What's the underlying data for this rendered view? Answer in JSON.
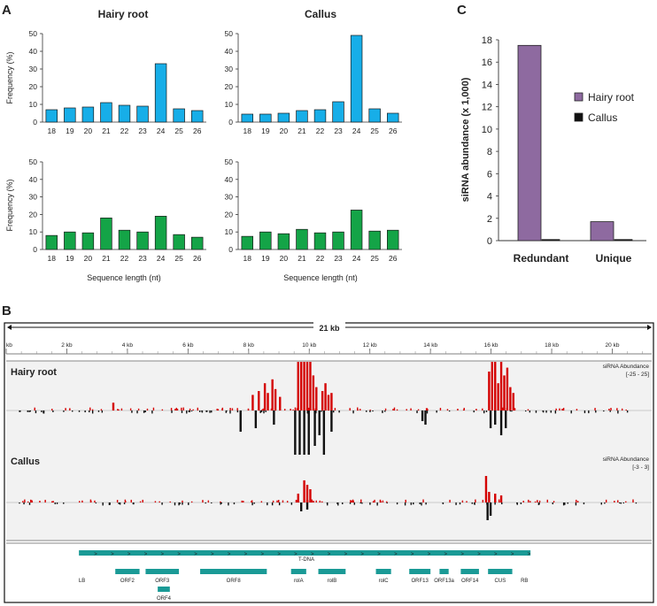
{
  "panel_labels": {
    "a": "A",
    "b": "B",
    "c": "C"
  },
  "panel_a": {
    "ylabel": "Frequency (%)",
    "xlabel": "Sequence length (nt)",
    "colors": {
      "top": "#17aee8",
      "bottom": "#14a447",
      "stroke": "#1a1a1a"
    }
  },
  "chart_data": [
    {
      "type": "bar",
      "title": "Hairy root",
      "categories": [
        "18",
        "19",
        "20",
        "21",
        "22",
        "23",
        "24",
        "25",
        "26"
      ],
      "values": [
        7,
        8,
        8.5,
        11,
        9.5,
        9,
        33,
        7.5,
        6.5
      ],
      "ylim": [
        0,
        50
      ],
      "yticks": [
        "0",
        "10",
        "20",
        "30",
        "40",
        "50"
      ],
      "ylabel": "Frequency (%)"
    },
    {
      "type": "bar",
      "title": "Callus",
      "categories": [
        "18",
        "19",
        "20",
        "21",
        "22",
        "23",
        "24",
        "25",
        "26"
      ],
      "values": [
        4.5,
        4.5,
        5,
        6.5,
        7,
        11.5,
        49,
        7.5,
        5
      ],
      "ylim": [
        0,
        50
      ],
      "yticks": [
        "0",
        "10",
        "20",
        "30",
        "40",
        "50"
      ]
    },
    {
      "type": "bar",
      "title": "",
      "categories": [
        "18",
        "19",
        "20",
        "21",
        "22",
        "23",
        "24",
        "25",
        "26"
      ],
      "values": [
        8,
        10,
        9.5,
        18,
        11,
        10,
        19,
        8.5,
        7
      ],
      "ylim": [
        0,
        50
      ],
      "yticks": [
        "0",
        "10",
        "20",
        "30",
        "40",
        "50"
      ],
      "xlabel": "Sequence length (nt)",
      "ylabel": "Frequency (%)"
    },
    {
      "type": "bar",
      "title": "",
      "categories": [
        "18",
        "19",
        "20",
        "21",
        "22",
        "23",
        "24",
        "25",
        "26"
      ],
      "values": [
        7.5,
        10,
        9,
        11.5,
        9.5,
        10,
        22.5,
        10.5,
        11
      ],
      "ylim": [
        0,
        50
      ],
      "yticks": [
        "0",
        "10",
        "20",
        "30",
        "40",
        "50"
      ],
      "xlabel": "Sequence length (nt)"
    },
    {
      "type": "bar",
      "title": "",
      "categories": [
        "Redundant",
        "Unique"
      ],
      "series": [
        {
          "name": "Hairy root",
          "color": "#8e6aa0",
          "values": [
            17.5,
            1.7
          ]
        },
        {
          "name": "Callus",
          "color": "#111111",
          "values": [
            0.1,
            0.1
          ]
        }
      ],
      "ylim": [
        0,
        18
      ],
      "yticks": [
        "0",
        "2",
        "4",
        "6",
        "8",
        "10",
        "12",
        "14",
        "16",
        "18"
      ],
      "ylabel": "siRNA abundance (x 1,000)"
    }
  ],
  "panel_b": {
    "scale_title": "21 kb",
    "ruler_ticks": [
      "kb",
      "2 kb",
      "4 kb",
      "6 kb",
      "8 kb",
      "10 kb",
      "12 kb",
      "14 kb",
      "16 kb",
      "18 kb",
      "20 kb"
    ],
    "ruler_kb": [
      0,
      2,
      4,
      6,
      8,
      10,
      12,
      14,
      16,
      18,
      20
    ],
    "track1": {
      "label": "Hairy root",
      "scale_title": "siRNA Abundance",
      "scale_range": "[-25 - 25]"
    },
    "track2": {
      "label": "Callus",
      "scale_title": "siRNA Abundance",
      "scale_range": "[-3 - 3]"
    },
    "colors": {
      "sense": "#d40000",
      "antisense": "#111111",
      "feature": "#1a9a96"
    },
    "tdna_label": "T-DNA",
    "features": [
      {
        "name": "LB",
        "start": 2.5,
        "end": 2.5,
        "row": 1
      },
      {
        "name": "ORF2",
        "start": 3.6,
        "end": 4.4,
        "row": 1
      },
      {
        "name": "ORF3",
        "start": 4.6,
        "end": 5.7,
        "row": 1
      },
      {
        "name": "ORF4",
        "start": 5.0,
        "end": 5.4,
        "row": 2
      },
      {
        "name": "ORF8",
        "start": 6.4,
        "end": 8.6,
        "row": 1
      },
      {
        "name": "rolA",
        "start": 9.4,
        "end": 9.9,
        "row": 1
      },
      {
        "name": "rolB",
        "start": 10.3,
        "end": 11.2,
        "row": 1
      },
      {
        "name": "rolC",
        "start": 12.2,
        "end": 12.7,
        "row": 1
      },
      {
        "name": "ORF13",
        "start": 13.3,
        "end": 14.0,
        "row": 1
      },
      {
        "name": "ORF13a",
        "start": 14.3,
        "end": 14.6,
        "row": 1
      },
      {
        "name": "ORF14",
        "start": 15.0,
        "end": 15.6,
        "row": 1
      },
      {
        "name": "CUS",
        "start": 15.9,
        "end": 16.7,
        "row": 1
      },
      {
        "name": "RB",
        "start": 17.1,
        "end": 17.1,
        "row": 1
      }
    ],
    "tdna": {
      "start": 2.4,
      "end": 17.3
    },
    "peaks": {
      "track1_sense": [
        [
          8.1,
          8
        ],
        [
          8.3,
          10
        ],
        [
          8.5,
          14
        ],
        [
          8.6,
          9
        ],
        [
          8.75,
          16
        ],
        [
          8.85,
          11
        ],
        [
          9.0,
          7
        ],
        [
          9.6,
          25
        ],
        [
          9.7,
          25
        ],
        [
          9.8,
          25
        ],
        [
          9.9,
          25
        ],
        [
          10.0,
          25
        ],
        [
          10.1,
          18
        ],
        [
          10.2,
          12
        ],
        [
          10.4,
          10
        ],
        [
          10.5,
          14
        ],
        [
          10.6,
          8
        ],
        [
          10.7,
          9
        ],
        [
          3.5,
          4
        ],
        [
          15.9,
          20
        ],
        [
          16.0,
          25
        ],
        [
          16.1,
          25
        ],
        [
          16.2,
          14
        ],
        [
          16.3,
          25
        ],
        [
          16.4,
          18
        ],
        [
          16.5,
          22
        ],
        [
          16.6,
          12
        ],
        [
          16.7,
          9
        ]
      ],
      "track1_anti": [
        [
          7.7,
          12
        ],
        [
          8.2,
          10
        ],
        [
          8.8,
          8
        ],
        [
          9.5,
          25
        ],
        [
          9.65,
          25
        ],
        [
          9.8,
          25
        ],
        [
          9.95,
          25
        ],
        [
          10.15,
          20
        ],
        [
          10.3,
          14
        ],
        [
          10.45,
          25
        ],
        [
          10.7,
          12
        ],
        [
          13.7,
          6
        ],
        [
          13.8,
          8
        ],
        [
          15.95,
          10
        ],
        [
          16.1,
          8
        ],
        [
          16.3,
          14
        ],
        [
          16.45,
          10
        ]
      ],
      "track2_sense": [
        [
          9.8,
          2.5
        ],
        [
          9.9,
          2
        ],
        [
          10.0,
          1.5
        ],
        [
          9.6,
          1
        ],
        [
          15.8,
          3
        ],
        [
          15.9,
          1.2
        ],
        [
          16.1,
          1
        ],
        [
          16.3,
          0.8
        ]
      ],
      "track2_anti": [
        [
          9.7,
          1
        ],
        [
          9.9,
          0.8
        ],
        [
          15.85,
          2
        ],
        [
          15.95,
          1.5
        ]
      ]
    }
  }
}
